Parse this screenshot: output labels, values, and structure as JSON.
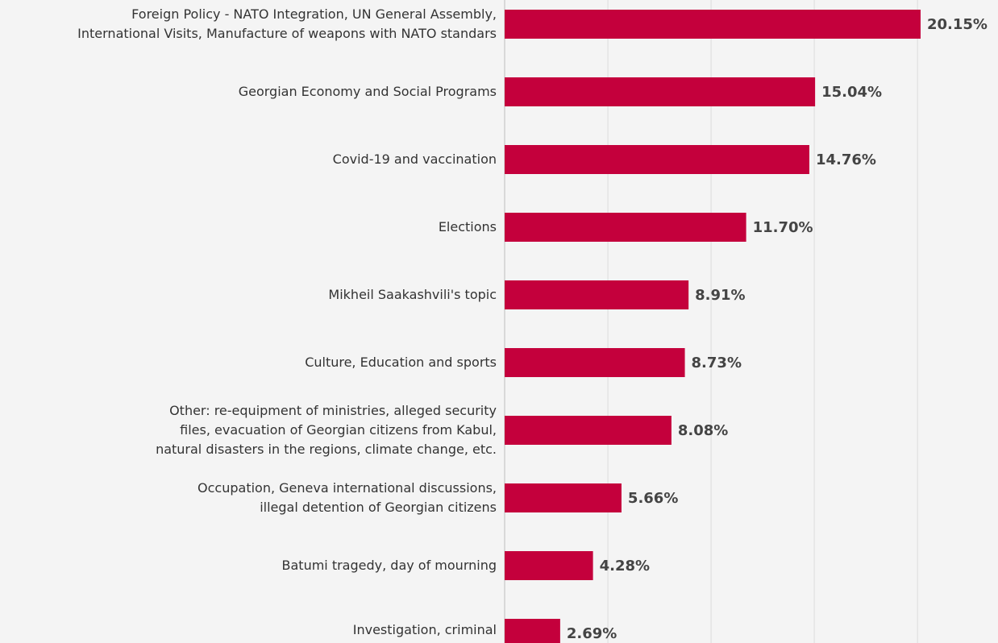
{
  "chart_data": {
    "type": "barh",
    "categories": [
      "Foreign Policy - NATO Integration, UN General Assembly,\nInternational Visits, Manufacture of weapons with NATO standars",
      "Georgian Economy and Social Programs",
      "Covid-19 and vaccination",
      "Elections",
      "Mikheil Saakashvili's topic",
      "Culture, Education and sports",
      "Other: re-equipment of ministries, alleged security\nfiles, evacuation of Georgian citizens from Kabul,\nnatural disasters in the regions, climate change, etc.",
      "Occupation, Geneva international discussions,\nillegal detention of Georgian citizens",
      "Batumi tragedy, day of mourning",
      "Investigation, criminal"
    ],
    "values": [
      20.15,
      15.04,
      14.76,
      11.7,
      8.91,
      8.73,
      8.08,
      5.66,
      4.28,
      2.69
    ],
    "value_labels": [
      "20.15%",
      "15.04%",
      "14.76%",
      "11.70%",
      "8.91%",
      "8.73%",
      "8.08%",
      "5.66%",
      "4.28%",
      "2.69%"
    ],
    "color": "#c4003c",
    "xlim": [
      0,
      23.9
    ],
    "xticks": [
      0,
      5,
      10,
      15,
      20
    ],
    "grid": true
  }
}
